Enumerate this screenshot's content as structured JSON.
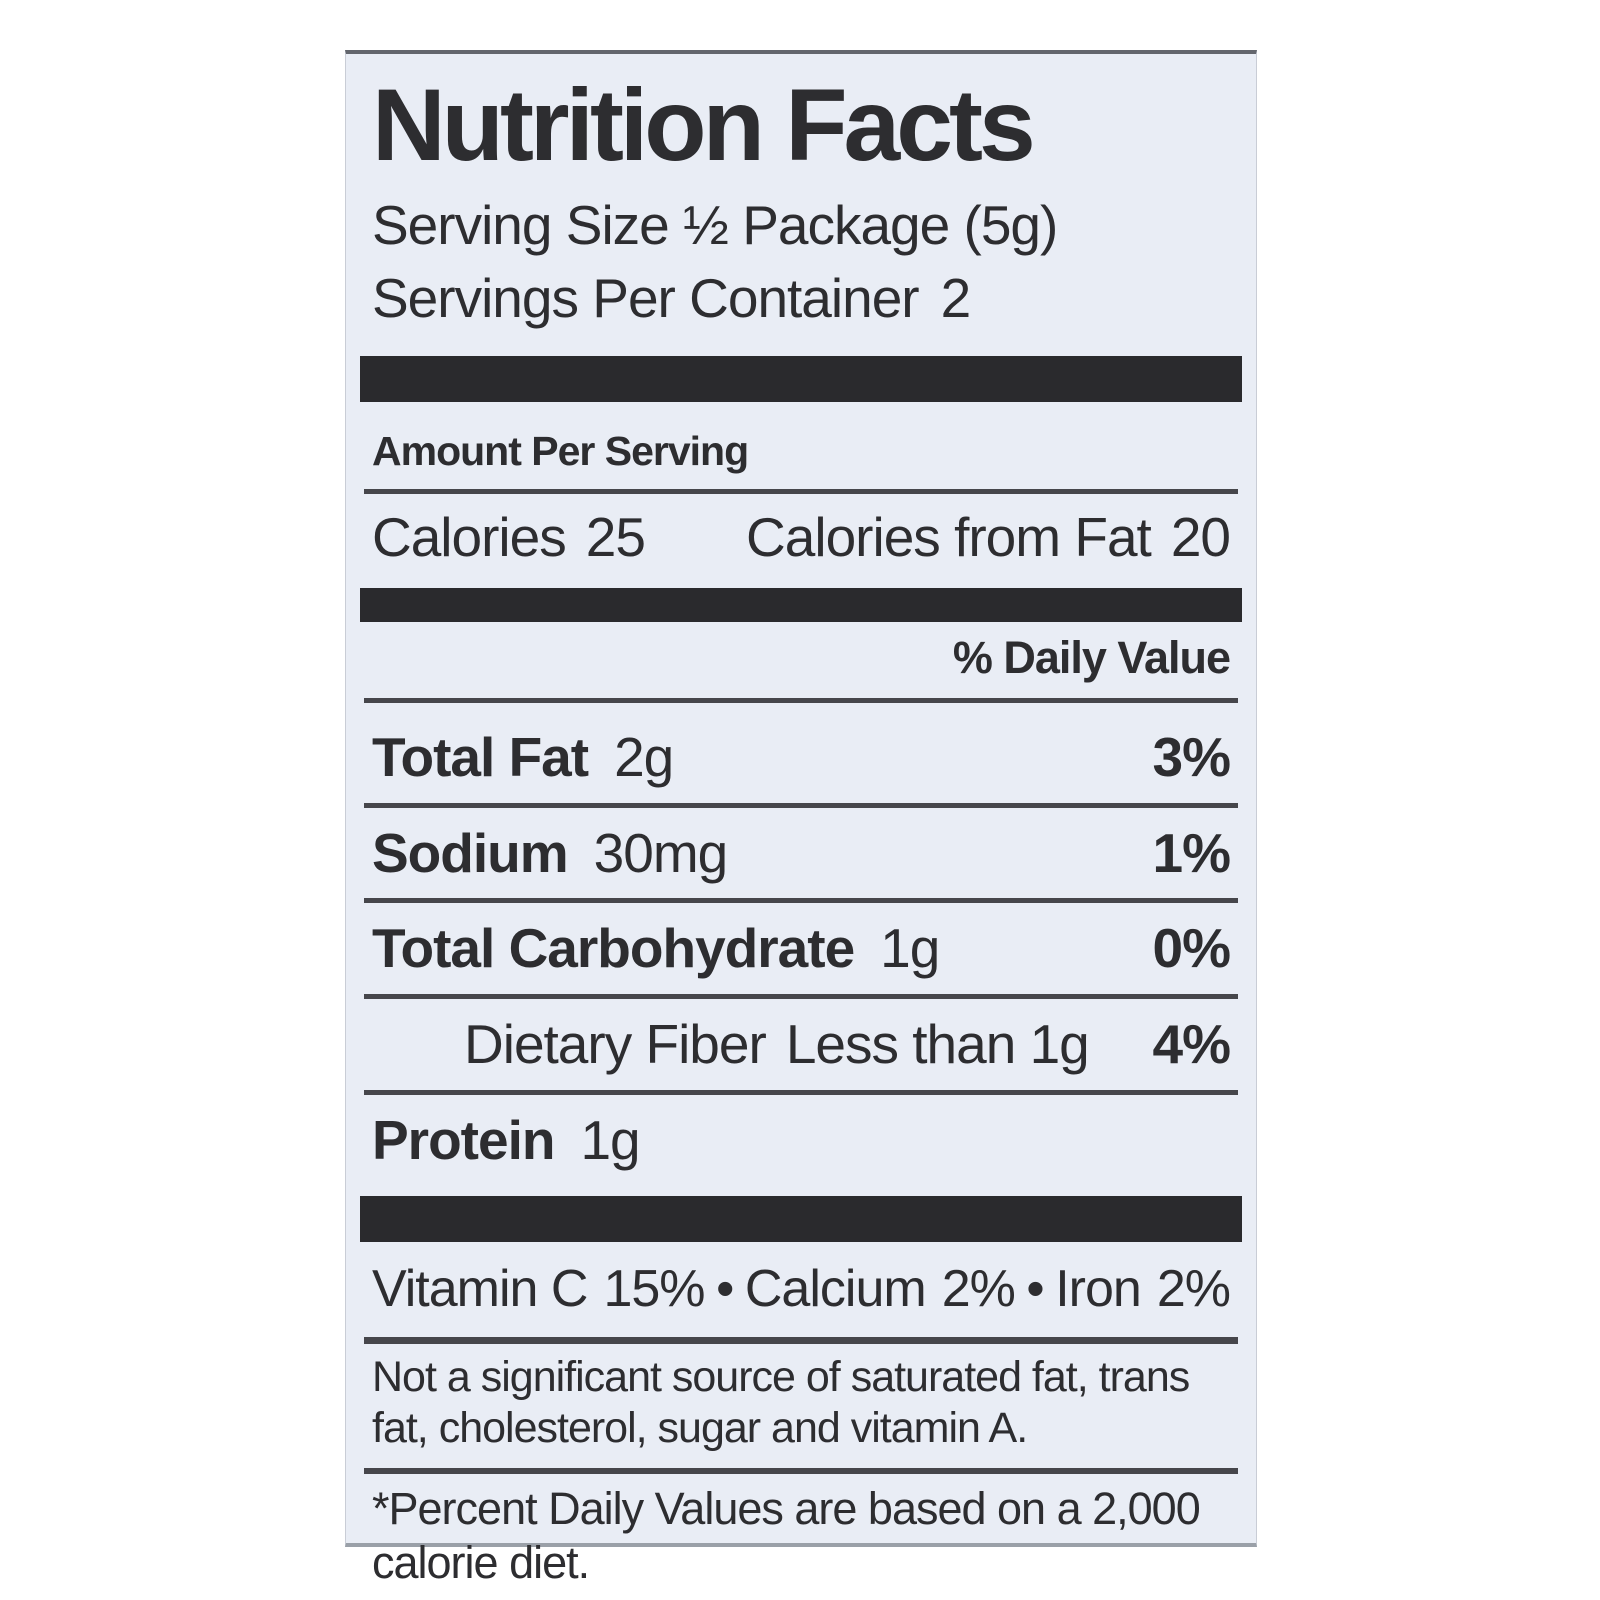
{
  "label": {
    "title": "Nutrition Facts",
    "serving_size": "Serving Size ½ Package (5g)",
    "servings_per_container_label": "Servings Per Container",
    "servings_per_container_value": "2",
    "amount_per_serving": "Amount Per Serving",
    "calories_label": "Calories",
    "calories_value": "25",
    "calories_from_fat_label": "Calories from Fat",
    "calories_from_fat_value": "20",
    "daily_value_header": "% Daily Value",
    "rows": [
      {
        "name": "Total Fat",
        "amount": "2g",
        "dv": "3%"
      },
      {
        "name": "Sodium",
        "amount": "30mg",
        "dv": "1%"
      },
      {
        "name": "Total Carbohydrate",
        "amount": "1g",
        "dv": "0%"
      },
      {
        "name": "Dietary Fiber",
        "amount": "Less than 1g",
        "dv": "4%"
      },
      {
        "name": "Protein",
        "amount": "1g",
        "dv": ""
      }
    ],
    "separator": "•",
    "micronutrients": [
      {
        "name": "Vitamin C",
        "value": "15%"
      },
      {
        "name": "Calcium",
        "value": "2%"
      },
      {
        "name": "Iron",
        "value": "2%"
      }
    ],
    "not_significant_note": "Not a significant source of saturated fat, trans fat, cholesterol, sugar and vitamin A.",
    "footnote": "*Percent Daily Values are based on a 2,000 calorie diet.",
    "colors": {
      "page_bg": "#ffffff",
      "label_bg": "#e9edf5",
      "text": "#2d2d30",
      "bar": "#2a2a2d"
    }
  }
}
